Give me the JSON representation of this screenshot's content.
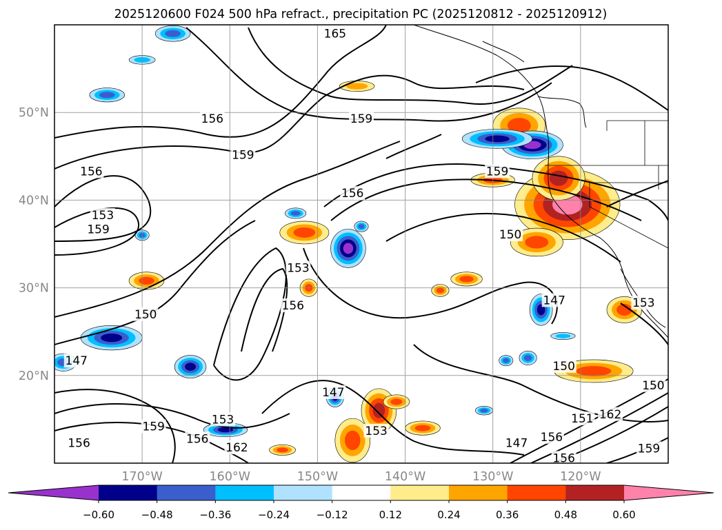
{
  "title": "2025120600 F024 500 hPa refract., precipitation PC (2025120812 - 2025120912)",
  "map": {
    "lon_labels": [
      "170°W",
      "160°W",
      "150°W",
      "140°W",
      "130°W",
      "120°W"
    ],
    "lat_labels": [
      "50°N",
      "40°N",
      "30°N",
      "20°N"
    ],
    "lon_values": [
      -170,
      -160,
      -150,
      -140,
      -130,
      -120
    ],
    "lat_values": [
      50,
      40,
      30,
      20
    ],
    "extent": {
      "lon_min": -180,
      "lon_max": -110,
      "lat_min": 10,
      "lat_max": 60
    },
    "grid": true
  },
  "contour_labels": [
    {
      "text": "165",
      "lon": -148,
      "lat": 59
    },
    {
      "text": "156",
      "lon": -162,
      "lat": 49.3
    },
    {
      "text": "159",
      "lon": -145,
      "lat": 49.3
    },
    {
      "text": "159",
      "lon": -158.5,
      "lat": 45.2
    },
    {
      "text": "156",
      "lon": -175.8,
      "lat": 43.3
    },
    {
      "text": "156",
      "lon": -146,
      "lat": 40.8
    },
    {
      "text": "159",
      "lon": -129.5,
      "lat": 43.3
    },
    {
      "text": "153",
      "lon": -174.5,
      "lat": 38.3
    },
    {
      "text": "159",
      "lon": -175,
      "lat": 36.7
    },
    {
      "text": "150",
      "lon": -128,
      "lat": 36.1
    },
    {
      "text": "153",
      "lon": -152.2,
      "lat": 32.3
    },
    {
      "text": "156",
      "lon": -152.8,
      "lat": 28
    },
    {
      "text": "150",
      "lon": -169.6,
      "lat": 27
    },
    {
      "text": "147",
      "lon": -123,
      "lat": 28.6
    },
    {
      "text": "147",
      "lon": -177.5,
      "lat": 21.7
    },
    {
      "text": "150",
      "lon": -121.9,
      "lat": 21.1
    },
    {
      "text": "147",
      "lon": -148.2,
      "lat": 18.1
    },
    {
      "text": "153",
      "lon": -160.8,
      "lat": 15
    },
    {
      "text": "159",
      "lon": -168.7,
      "lat": 14.2
    },
    {
      "text": "156",
      "lon": -163.7,
      "lat": 12.8
    },
    {
      "text": "153",
      "lon": -143.3,
      "lat": 13.7
    },
    {
      "text": "162",
      "lon": -159.2,
      "lat": 11.8
    },
    {
      "text": "156",
      "lon": -177.2,
      "lat": 12.3
    },
    {
      "text": "147",
      "lon": -127.3,
      "lat": 12.3
    },
    {
      "text": "156",
      "lon": -123.3,
      "lat": 13
    },
    {
      "text": "151",
      "lon": -119.8,
      "lat": 15.1
    },
    {
      "text": "162",
      "lon": -116.6,
      "lat": 15.6
    },
    {
      "text": "150",
      "lon": -111.7,
      "lat": 18.9
    },
    {
      "text": "156",
      "lon": -121.9,
      "lat": 10.6
    },
    {
      "text": "159",
      "lon": -112.2,
      "lat": 11.7
    },
    {
      "text": "153",
      "lon": -112.8,
      "lat": 28.3
    }
  ],
  "colorbar": {
    "tick_labels": [
      "−0.60",
      "−0.48",
      "−0.36",
      "−0.24",
      "−0.12",
      "0.12",
      "0.24",
      "0.36",
      "0.48",
      "0.60"
    ],
    "colors": [
      "#9932cc",
      "#00008b",
      "#3a5fcd",
      "#00bfff",
      "#b0e2ff",
      "#ffffff",
      "#ffec8b",
      "#ffa500",
      "#ff4500",
      "#b22222",
      "#ff82ab"
    ]
  },
  "precip_cells": [
    {
      "lon": -121.5,
      "lat": 39.5,
      "rx": 6,
      "ry": 4,
      "level": 0.6
    },
    {
      "lon": -122.5,
      "lat": 42.5,
      "rx": 3,
      "ry": 2.5,
      "level": 0.48
    },
    {
      "lon": -127,
      "lat": 48.5,
      "rx": 3,
      "ry": 2,
      "level": 0.36
    },
    {
      "lon": -125,
      "lat": 35.2,
      "rx": 3,
      "ry": 1.6,
      "level": 0.36
    },
    {
      "lon": -143,
      "lat": 16,
      "rx": 2,
      "ry": 2.5,
      "level": 0.48
    },
    {
      "lon": -146,
      "lat": 12.6,
      "rx": 2,
      "ry": 2.5,
      "level": 0.36
    },
    {
      "lon": -151.5,
      "lat": 36.3,
      "rx": 2.8,
      "ry": 1.3,
      "level": 0.36
    },
    {
      "lon": -169.5,
      "lat": 30.8,
      "rx": 2,
      "ry": 1,
      "level": 0.36
    },
    {
      "lon": -151,
      "lat": 30,
      "rx": 1,
      "ry": 1,
      "level": 0.36
    },
    {
      "lon": -133,
      "lat": 31,
      "rx": 1.8,
      "ry": 0.8,
      "level": 0.36
    },
    {
      "lon": -136,
      "lat": 29.7,
      "rx": 1,
      "ry": 0.7,
      "level": 0.36
    },
    {
      "lon": -118.5,
      "lat": 20.5,
      "rx": 4.5,
      "ry": 1.3,
      "level": 0.36
    },
    {
      "lon": -138,
      "lat": 14,
      "rx": 2,
      "ry": 0.8,
      "level": 0.36
    },
    {
      "lon": -141,
      "lat": 17,
      "rx": 1.5,
      "ry": 0.8,
      "level": 0.36
    },
    {
      "lon": -154,
      "lat": 11.5,
      "rx": 1.5,
      "ry": 0.6,
      "level": 0.36
    },
    {
      "lon": -130,
      "lat": 42.3,
      "rx": 2.5,
      "ry": 0.8,
      "level": 0.36
    },
    {
      "lon": -145.5,
      "lat": 53,
      "rx": 2,
      "ry": 0.6,
      "level": 0.24
    },
    {
      "lon": -115,
      "lat": 27.5,
      "rx": 2,
      "ry": 1.5,
      "level": 0.36
    },
    {
      "lon": -125.5,
      "lat": 46.3,
      "rx": 3.5,
      "ry": 1.6,
      "level": -0.6
    },
    {
      "lon": -129.5,
      "lat": 47,
      "rx": 4,
      "ry": 1.1,
      "level": -0.48
    },
    {
      "lon": -146.5,
      "lat": 34.5,
      "rx": 2,
      "ry": 2.2,
      "level": -0.6
    },
    {
      "lon": -124.5,
      "lat": 27.5,
      "rx": 1.3,
      "ry": 1.8,
      "level": -0.48
    },
    {
      "lon": -173.5,
      "lat": 24.3,
      "rx": 3.5,
      "ry": 1.4,
      "level": -0.48
    },
    {
      "lon": -164.5,
      "lat": 21,
      "rx": 1.8,
      "ry": 1.3,
      "level": -0.48
    },
    {
      "lon": -160.5,
      "lat": 13.8,
      "rx": 2.5,
      "ry": 0.8,
      "level": -0.48
    },
    {
      "lon": -148,
      "lat": 17.5,
      "rx": 1,
      "ry": 1.1,
      "level": -0.48
    },
    {
      "lon": -166.5,
      "lat": 59,
      "rx": 2,
      "ry": 0.9,
      "level": -0.36
    },
    {
      "lon": -174,
      "lat": 52,
      "rx": 2,
      "ry": 0.8,
      "level": -0.36
    },
    {
      "lon": -179,
      "lat": 21.5,
      "rx": 1.5,
      "ry": 1,
      "level": -0.36
    },
    {
      "lon": -152.5,
      "lat": 38.5,
      "rx": 1.2,
      "ry": 0.6,
      "level": -0.36
    },
    {
      "lon": -145,
      "lat": 37,
      "rx": 0.8,
      "ry": 0.6,
      "level": -0.36
    },
    {
      "lon": -170,
      "lat": 36,
      "rx": 0.8,
      "ry": 0.6,
      "level": -0.36
    },
    {
      "lon": -126,
      "lat": 22,
      "rx": 1,
      "ry": 0.8,
      "level": -0.36
    },
    {
      "lon": -128.5,
      "lat": 21.7,
      "rx": 0.8,
      "ry": 0.6,
      "level": -0.36
    },
    {
      "lon": -131,
      "lat": 16,
      "rx": 1,
      "ry": 0.5,
      "level": -0.36
    },
    {
      "lon": -122,
      "lat": 24.5,
      "rx": 1.4,
      "ry": 0.4,
      "level": -0.24
    },
    {
      "lon": -170,
      "lat": 56,
      "rx": 1.5,
      "ry": 0.5,
      "level": -0.24
    }
  ]
}
